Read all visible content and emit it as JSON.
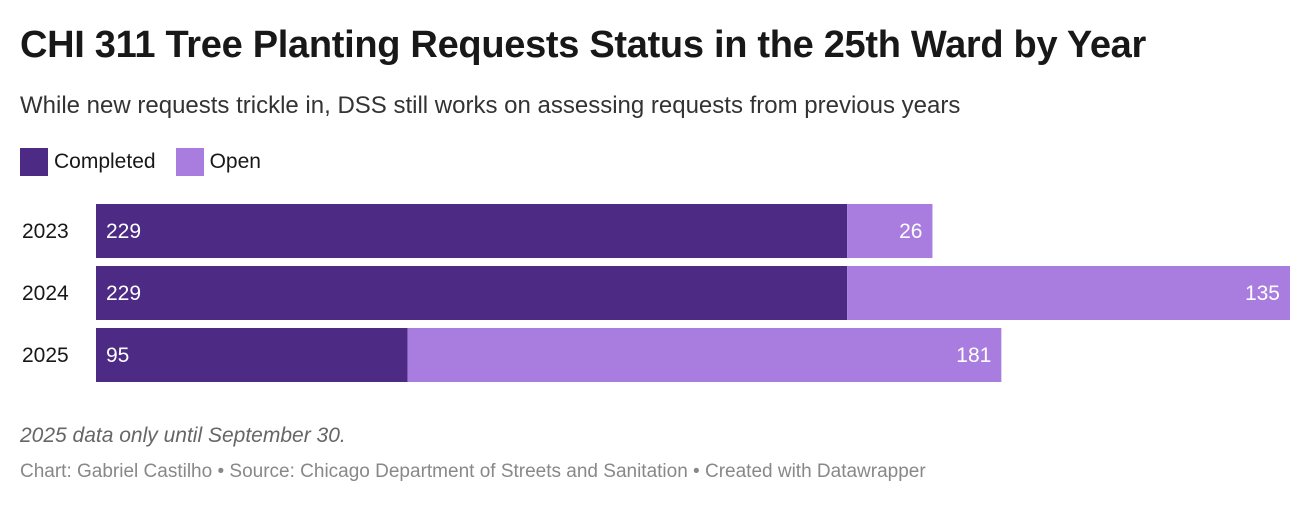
{
  "chart_data": {
    "type": "bar",
    "orientation": "horizontal",
    "stacked": true,
    "title": "CHI 311 Tree Planting Requests Status in the 25th Ward by Year",
    "subtitle": "While new requests trickle in, DSS still works on assessing requests from previous years",
    "categories": [
      "2023",
      "2024",
      "2025"
    ],
    "series": [
      {
        "name": "Completed",
        "color": "#4d2a84",
        "values": [
          229,
          229,
          95
        ]
      },
      {
        "name": "Open",
        "color": "#a87ddf",
        "values": [
          26,
          135,
          181
        ]
      }
    ],
    "xlim": [
      0,
      364
    ],
    "grid": false,
    "legend": "top-left",
    "note": "2025 data only until September 30.",
    "source": "Chart: Gabriel Castilho • Source: Chicago Department of Streets and Sanitation • Created with Datawrapper"
  }
}
